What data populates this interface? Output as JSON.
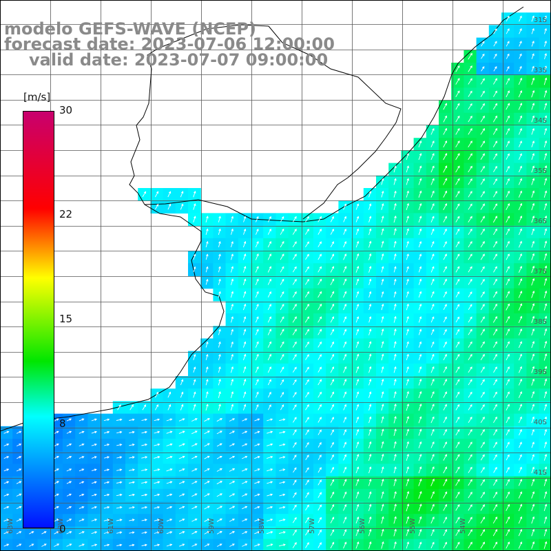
{
  "title": {
    "line1": "modelo GEFS-WAVE (NCEP)",
    "line2": "forecast date: 2023-07-06 12:00:00",
    "line3": "valid date: 2023-07-07 09:00:00"
  },
  "colorbar": {
    "unit": "[m/s]",
    "ticks": [
      "30",
      "22",
      "15",
      "8",
      "0"
    ],
    "stops": [
      {
        "value": 0,
        "color": "#0010ff"
      },
      {
        "value": 8,
        "color": "#00ffff"
      },
      {
        "value": 12,
        "color": "#00e600"
      },
      {
        "value": 18,
        "color": "#ffff00"
      },
      {
        "value": 23,
        "color": "#ff0000"
      },
      {
        "value": 30,
        "color": "#c8006e"
      }
    ]
  },
  "lat_labels": [
    "31S",
    "33S",
    "34S",
    "35S",
    "36S",
    "37S",
    "38S",
    "39S",
    "40S",
    "41S"
  ],
  "lon_labels": [
    "63W",
    "62W",
    "61W",
    "60W",
    "59W",
    "58W",
    "57W",
    "56W",
    "55W",
    "54W"
  ],
  "field": {
    "variable": "wind speed",
    "direction": "from southwest, arrows pointing north-northeast",
    "speed_range_ms": [
      2,
      11
    ]
  }
}
